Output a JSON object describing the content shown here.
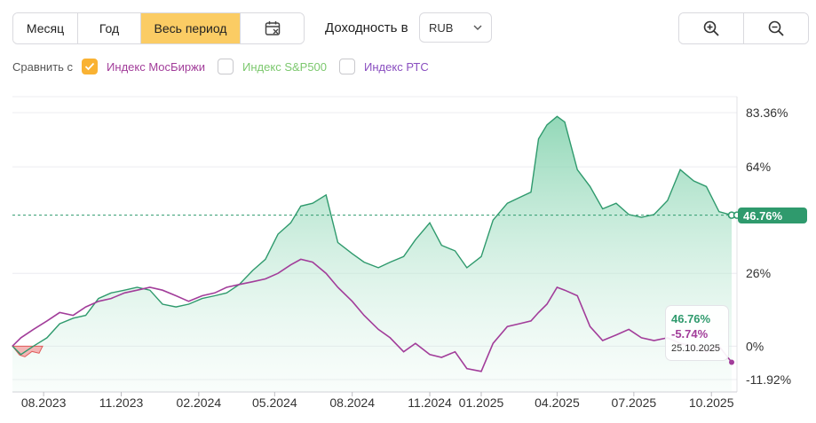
{
  "toolbar": {
    "periods": [
      "Месяц",
      "Год",
      "Весь период"
    ],
    "active_period": "Весь период",
    "calendar_icon": "calendar-icon",
    "yield_label": "Доходность в",
    "currency": "RUB",
    "zoom_in_icon": "zoom-in-icon",
    "zoom_out_icon": "zoom-out-icon"
  },
  "compare": {
    "label": "Сравнить с",
    "items": [
      {
        "label": "Индекс МосБиржи",
        "checked": true
      },
      {
        "label": "Индекс S&P500",
        "checked": false
      },
      {
        "label": "Индекс РТС",
        "checked": false
      }
    ]
  },
  "tooltip": {
    "value_main": "46.76%",
    "value_index": "-5.74%",
    "date": "25.10.2025"
  },
  "last_value_badge": "46.76%",
  "colors": {
    "main": "#2f9a6d",
    "main_fill": "#9fdcc0",
    "index": "#a23d9a",
    "negative": "#e05a5a",
    "accent": "#fbcc64"
  },
  "chart_data": {
    "type": "line",
    "y_unit": "%",
    "y_ticks": [
      "83.36%",
      "64%",
      "26%",
      "0%",
      "-11.92%"
    ],
    "y_tick_values": [
      83.36,
      64,
      26,
      0,
      -11.92
    ],
    "ylim": [
      -11.92,
      83.36
    ],
    "x_ticks": [
      "08.2023",
      "11.2023",
      "02.2024",
      "05.2024",
      "08.2024",
      "11.2024",
      "01.2025",
      "04.2025",
      "07.2025",
      "10.2025"
    ],
    "reference_line": 46.76,
    "series": [
      {
        "name": "",
        "x": [
          "2023-06-25",
          "2023-07-05",
          "2023-07-20",
          "2023-08-05",
          "2023-08-20",
          "2023-09-05",
          "2023-09-20",
          "2023-10-05",
          "2023-10-20",
          "2023-11-05",
          "2023-11-20",
          "2023-12-05",
          "2023-12-20",
          "2024-01-05",
          "2024-01-20",
          "2024-02-05",
          "2024-02-20",
          "2024-03-05",
          "2024-03-20",
          "2024-04-05",
          "2024-04-20",
          "2024-05-05",
          "2024-05-20",
          "2024-06-01",
          "2024-06-15",
          "2024-07-01",
          "2024-07-15",
          "2024-08-01",
          "2024-08-15",
          "2024-09-01",
          "2024-09-15",
          "2024-10-01",
          "2024-10-15",
          "2024-11-01",
          "2024-11-15",
          "2024-12-01",
          "2024-12-15",
          "2025-01-01",
          "2025-01-15",
          "2025-02-01",
          "2025-02-15",
          "2025-03-01",
          "2025-03-10",
          "2025-03-20",
          "2025-04-01",
          "2025-04-10",
          "2025-04-25",
          "2025-05-10",
          "2025-05-25",
          "2025-06-10",
          "2025-06-25",
          "2025-07-10",
          "2025-07-25",
          "2025-08-10",
          "2025-08-25",
          "2025-09-10",
          "2025-09-25",
          "2025-10-10",
          "2025-10-25"
        ],
        "values": [
          0,
          -3,
          0,
          3,
          8,
          10,
          11,
          17,
          19,
          20,
          21,
          20,
          15,
          14,
          15,
          17,
          18,
          19,
          22,
          27,
          31,
          40,
          44,
          50,
          51,
          54,
          37,
          33,
          30,
          28,
          30,
          32,
          38,
          44,
          36,
          34,
          28,
          32,
          45,
          51,
          53,
          55,
          74,
          79,
          82,
          80,
          63,
          57,
          49,
          51,
          47,
          46,
          47,
          52,
          63,
          59,
          57,
          48,
          46.76
        ]
      },
      {
        "name": "Индекс МосБиржи",
        "x": [
          "2023-06-25",
          "2023-07-05",
          "2023-07-20",
          "2023-08-05",
          "2023-08-20",
          "2023-09-05",
          "2023-09-20",
          "2023-10-05",
          "2023-10-20",
          "2023-11-05",
          "2023-11-20",
          "2023-12-05",
          "2023-12-20",
          "2024-01-05",
          "2024-01-20",
          "2024-02-05",
          "2024-02-20",
          "2024-03-05",
          "2024-03-20",
          "2024-04-05",
          "2024-04-20",
          "2024-05-05",
          "2024-05-20",
          "2024-06-01",
          "2024-06-15",
          "2024-07-01",
          "2024-07-15",
          "2024-08-01",
          "2024-08-15",
          "2024-09-01",
          "2024-09-15",
          "2024-10-01",
          "2024-10-15",
          "2024-11-01",
          "2024-11-15",
          "2024-12-01",
          "2024-12-15",
          "2025-01-01",
          "2025-01-15",
          "2025-02-01",
          "2025-02-15",
          "2025-03-01",
          "2025-03-10",
          "2025-03-20",
          "2025-04-01",
          "2025-04-10",
          "2025-04-25",
          "2025-05-10",
          "2025-05-25",
          "2025-06-10",
          "2025-06-25",
          "2025-07-10",
          "2025-07-25",
          "2025-08-10",
          "2025-08-25",
          "2025-09-10",
          "2025-09-25",
          "2025-10-10",
          "2025-10-25"
        ],
        "values": [
          0,
          3,
          6,
          9,
          12,
          11,
          14,
          16,
          17,
          19,
          20,
          21,
          20,
          18,
          16,
          18,
          19,
          21,
          22,
          23,
          24,
          26,
          29,
          31,
          30,
          26,
          21,
          16,
          11,
          6,
          3,
          -2,
          1,
          -3,
          -4,
          -2,
          -8,
          -9,
          1,
          7,
          8,
          9,
          12,
          15,
          21,
          20,
          18,
          7,
          2,
          4,
          6,
          3,
          2,
          3,
          1,
          0,
          -2,
          0,
          -5.74
        ]
      }
    ]
  }
}
